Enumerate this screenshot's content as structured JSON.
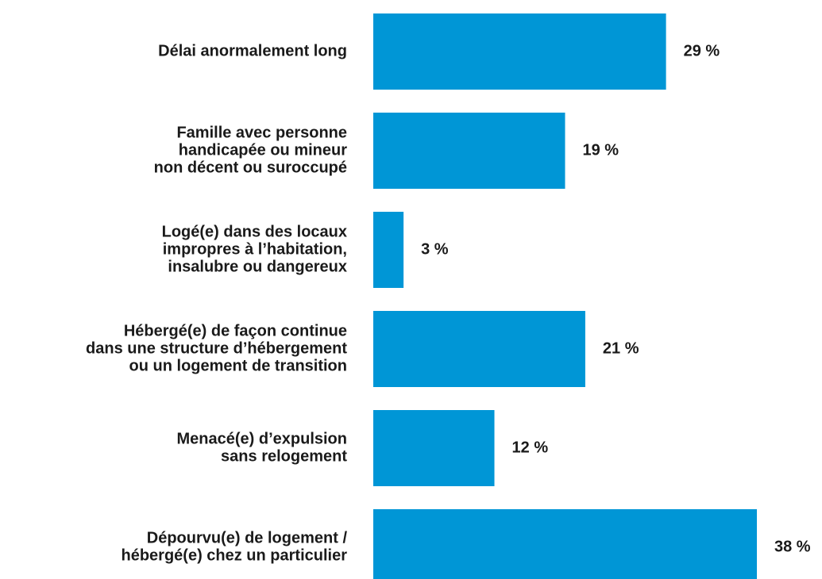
{
  "chart_data": {
    "type": "hbar",
    "categories": [
      [
        "Délai anormalement long"
      ],
      [
        "Famille avec personne",
        "handicapée ou mineur",
        "non décent ou suroccupé"
      ],
      [
        "Logé(e) dans des locaux",
        "impropres à l’habitation,",
        "insalubre ou dangereux"
      ],
      [
        "Hébergé(e) de façon continue",
        "dans une structure d’hébergement",
        "ou un logement de transition"
      ],
      [
        "Menacé(e) d’expulsion",
        "sans relogement"
      ],
      [
        "Dépourvu(e) de logement /",
        "hébergé(e) chez un particulier"
      ]
    ],
    "values": [
      29,
      19,
      3,
      21,
      12,
      38
    ],
    "value_labels": [
      "29 %",
      "19 %",
      "3 %",
      "21 %",
      "12 %",
      "38 %"
    ],
    "color": "#0096d6"
  }
}
